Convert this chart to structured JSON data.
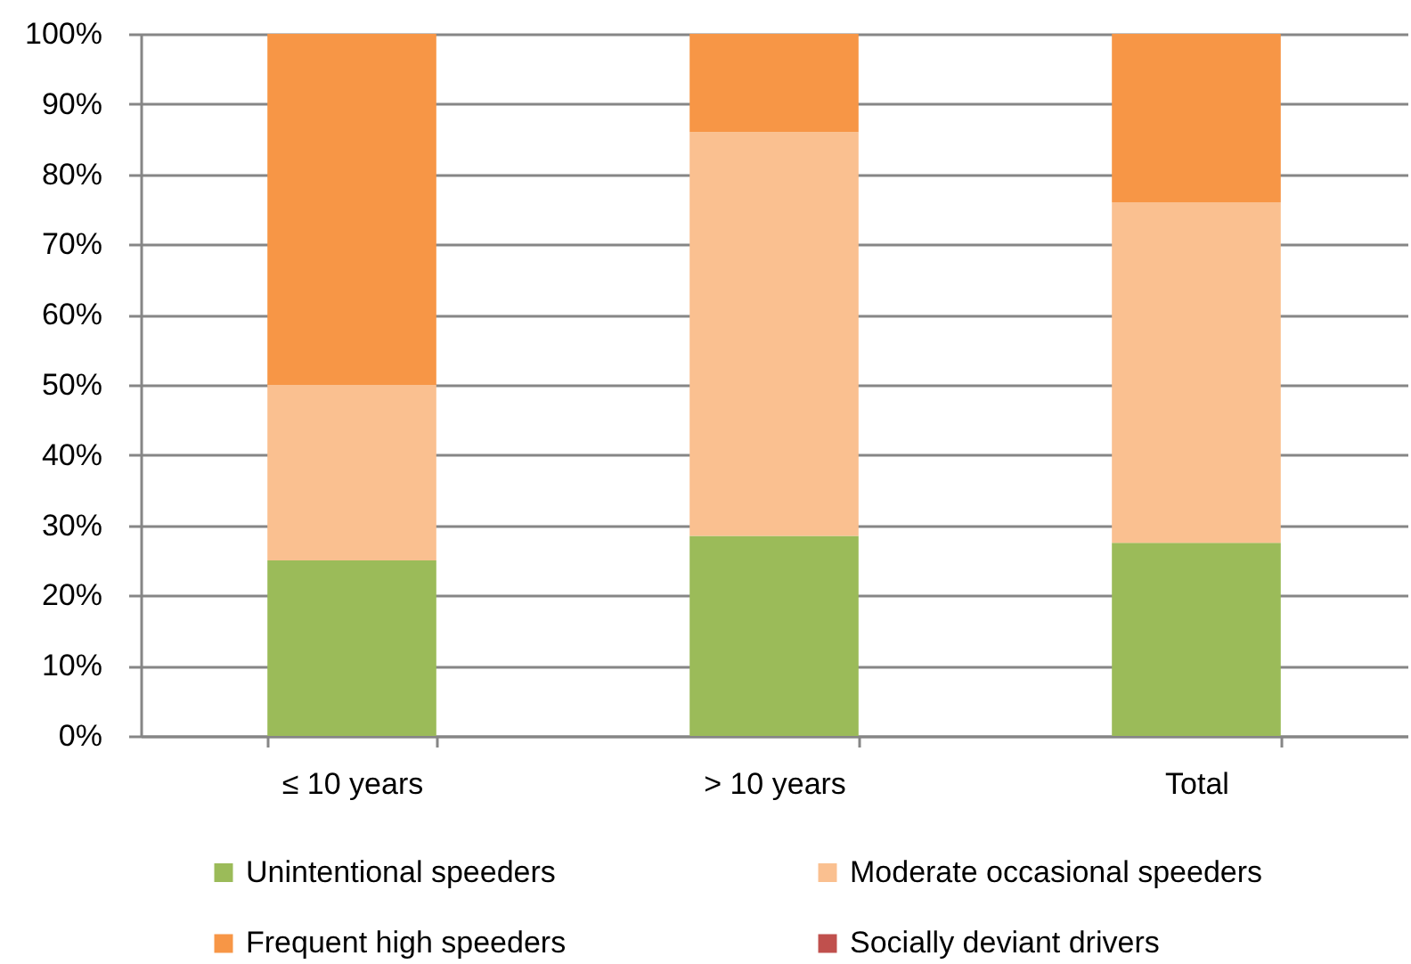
{
  "chart_data": {
    "type": "bar",
    "stacked": true,
    "categories": [
      "≤ 10 years",
      "> 10 years",
      "Total"
    ],
    "series": [
      {
        "name": "Unintentional speeders",
        "color": "#9bbb59",
        "values": [
          25,
          28.5,
          27.5
        ]
      },
      {
        "name": "Moderate occasional speeders",
        "color": "#fac090",
        "values": [
          25,
          57.5,
          48.5
        ]
      },
      {
        "name": "Frequent high speeders",
        "color": "#f79646",
        "values": [
          50,
          14,
          24
        ]
      },
      {
        "name": "Socially deviant drivers",
        "color": "#c0504d",
        "values": [
          null,
          null,
          null
        ]
      }
    ],
    "ylim": [
      0,
      100
    ],
    "yticks": [
      {
        "value": 0,
        "label": "0%"
      },
      {
        "value": 10,
        "label": "10%"
      },
      {
        "value": 20,
        "label": "20%"
      },
      {
        "value": 30,
        "label": "30%"
      },
      {
        "value": 40,
        "label": "40%"
      },
      {
        "value": 50,
        "label": "50%"
      },
      {
        "value": 60,
        "label": "60%"
      },
      {
        "value": 70,
        "label": "70%"
      },
      {
        "value": 80,
        "label": "80%"
      },
      {
        "value": 90,
        "label": "90%"
      },
      {
        "value": 100,
        "label": "100%"
      }
    ],
    "grid": "y",
    "legend": "bottom"
  }
}
